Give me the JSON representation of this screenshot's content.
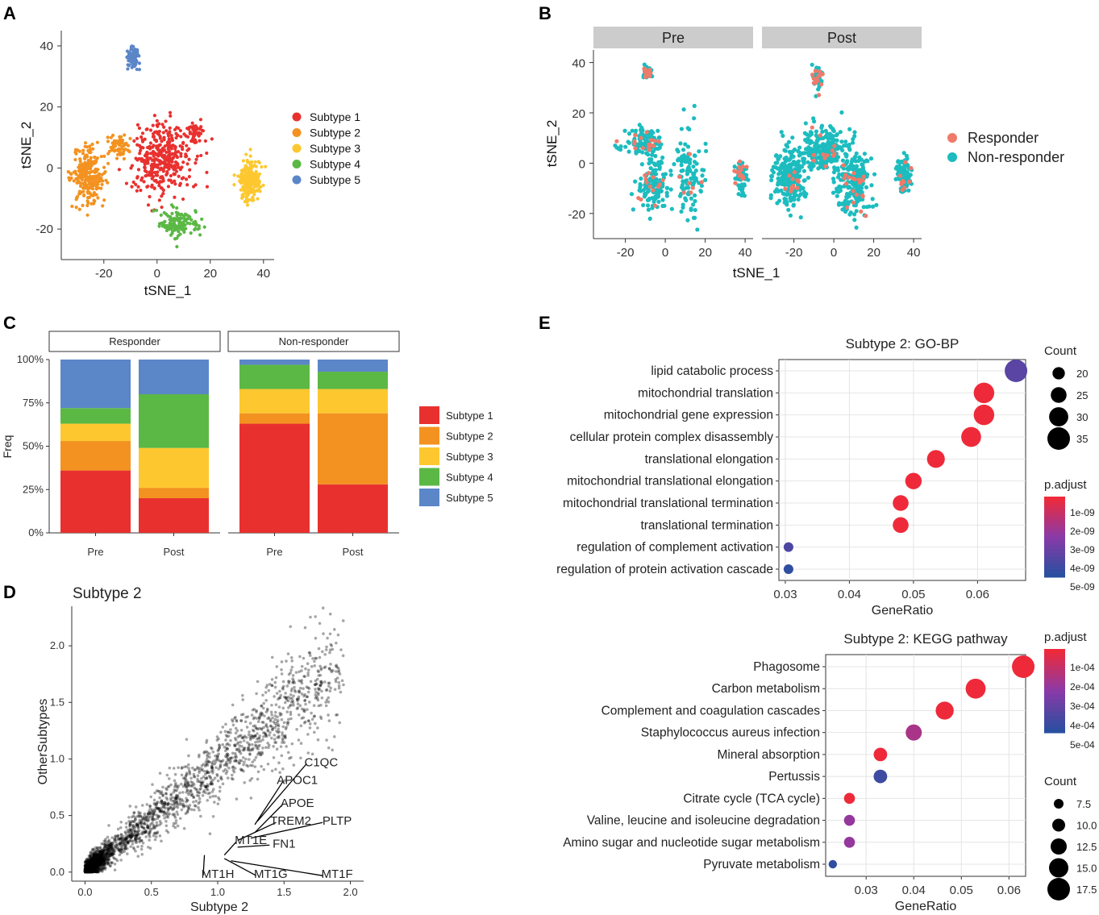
{
  "panel_labels": [
    "A",
    "B",
    "C",
    "D",
    "E"
  ],
  "colors": {
    "subtype1": "#e8312f",
    "subtype2": "#f39220",
    "subtype3": "#fdc82f",
    "subtype4": "#5bb845",
    "subtype5": "#5b86c8",
    "responder": "#f07a6a",
    "nonresponder": "#1cbcbf",
    "padj_high": "#ee2a3a",
    "padj_low": "#2a4fa0",
    "strip": "#cccccc"
  },
  "chart_data": [
    {
      "id": "A",
      "type": "scatter",
      "xlabel": "tSNE_1",
      "ylabel": "tSNE_2",
      "xlim": [
        -36,
        44
      ],
      "ylim": [
        -30,
        45
      ],
      "xticks": [
        -20,
        0,
        20,
        40
      ],
      "yticks": [
        -20,
        0,
        20,
        40
      ],
      "legend_position": "right",
      "series": [
        {
          "name": "Subtype 1",
          "clusters": [
            {
              "cx": 2,
              "cy": 3,
              "sx": 9,
              "sy": 10,
              "n": 360
            },
            {
              "cx": 15,
              "cy": 12,
              "sx": 3,
              "sy": 3,
              "n": 40
            }
          ]
        },
        {
          "name": "Subtype 2",
          "clusters": [
            {
              "cx": -26,
              "cy": -3,
              "sx": 5,
              "sy": 8,
              "n": 240
            },
            {
              "cx": -14,
              "cy": 7,
              "sx": 4,
              "sy": 3,
              "n": 60
            }
          ]
        },
        {
          "name": "Subtype 3",
          "clusters": [
            {
              "cx": 35,
              "cy": -4,
              "sx": 3.5,
              "sy": 5.5,
              "n": 230
            }
          ]
        },
        {
          "name": "Subtype 4",
          "clusters": [
            {
              "cx": 8,
              "cy": -18,
              "sx": 6,
              "sy": 4,
              "n": 140
            }
          ]
        },
        {
          "name": "Subtype 5",
          "clusters": [
            {
              "cx": -9,
              "cy": 36,
              "sx": 2.2,
              "sy": 3,
              "n": 90
            }
          ]
        }
      ]
    },
    {
      "id": "B",
      "type": "scatter",
      "xlabel": "tSNE_1",
      "ylabel": "tSNE_2",
      "xlim": [
        -36,
        44
      ],
      "ylim": [
        -30,
        45
      ],
      "xticks": [
        -20,
        0,
        20,
        40
      ],
      "yticks": [
        -20,
        0,
        20,
        40
      ],
      "facets": [
        "Pre",
        "Post"
      ],
      "legend_position": "right",
      "series": [
        {
          "name": "Responder",
          "pre_count": 60,
          "post_count": 70
        },
        {
          "name": "Non-responder",
          "pre_count": 400,
          "post_count": 850
        }
      ]
    },
    {
      "id": "C",
      "type": "bar",
      "stacked": true,
      "ylabel": "Freq",
      "yticks": [
        "0%",
        "25%",
        "50%",
        "75%",
        "100%"
      ],
      "facets": [
        "Responder",
        "Non-responder"
      ],
      "categories": [
        "Pre",
        "Post"
      ],
      "series": [
        {
          "name": "Subtype 1",
          "Responder": [
            36,
            20
          ],
          "Non-responder": [
            63,
            28
          ]
        },
        {
          "name": "Subtype 2",
          "Responder": [
            17,
            6
          ],
          "Non-responder": [
            6,
            41
          ]
        },
        {
          "name": "Subtype 3",
          "Responder": [
            10,
            23
          ],
          "Non-responder": [
            14,
            14
          ]
        },
        {
          "name": "Subtype 4",
          "Responder": [
            9,
            31
          ],
          "Non-responder": [
            14,
            10
          ]
        },
        {
          "name": "Subtype 5",
          "Responder": [
            28,
            20
          ],
          "Non-responder": [
            3,
            7
          ]
        }
      ]
    },
    {
      "id": "D",
      "type": "scatter",
      "title": "Subtype 2",
      "xlabel": "Subtype 2",
      "ylabel": "OtherSubtypes",
      "xlim": [
        -0.1,
        2.1
      ],
      "ylim": [
        -0.08,
        2.35
      ],
      "xticks": [
        "0.0",
        "0.5",
        "1.0",
        "1.5",
        "2.0"
      ],
      "yticks": [
        "0.0",
        "0.5",
        "1.0",
        "1.5",
        "2.0"
      ],
      "labelled_genes": [
        {
          "gene": "C1QC",
          "x": 1.3,
          "y": 0.45,
          "lx": 1.78,
          "ly": 0.98
        },
        {
          "gene": "APOC1",
          "x": 1.28,
          "y": 0.42,
          "lx": 1.6,
          "ly": 0.82
        },
        {
          "gene": "APOE",
          "x": 1.28,
          "y": 0.35,
          "lx": 1.6,
          "ly": 0.62
        },
        {
          "gene": "TREM2",
          "x": 1.15,
          "y": 0.28,
          "lx": 1.55,
          "ly": 0.46
        },
        {
          "gene": "PLTP",
          "x": 1.25,
          "y": 0.3,
          "lx": 1.9,
          "ly": 0.46
        },
        {
          "gene": "MT1E",
          "x": 1.05,
          "y": 0.15,
          "lx": 1.25,
          "ly": 0.29
        },
        {
          "gene": "FN1",
          "x": 1.15,
          "y": 0.22,
          "lx": 1.5,
          "ly": 0.26
        },
        {
          "gene": "MT1H",
          "x": 0.9,
          "y": 0.15,
          "lx": 1.0,
          "ly": -0.01
        },
        {
          "gene": "MT1G",
          "x": 1.05,
          "y": 0.12,
          "lx": 1.4,
          "ly": -0.01
        },
        {
          "gene": "MT1F",
          "x": 1.1,
          "y": 0.1,
          "lx": 1.9,
          "ly": -0.01
        }
      ]
    },
    {
      "id": "E1",
      "type": "scatter",
      "style": "dotplot",
      "title": "Subtype 2: GO-BP",
      "xlabel": "GeneRatio",
      "xlim": [
        0.029,
        0.0675
      ],
      "xticks": [
        0.03,
        0.04,
        0.05,
        0.06
      ],
      "xtick_labels": [
        "0.03",
        "0.04",
        "0.05",
        "0.06"
      ],
      "size_legend_title": "Count",
      "size_legend": [
        20,
        25,
        30,
        35
      ],
      "color_legend_title": "p.adjust",
      "color_legend": [
        "1e-09",
        "2e-09",
        "3e-09",
        "4e-09",
        "5e-09"
      ],
      "terms": [
        {
          "term": "lipid catabolic process",
          "gene_ratio": 0.066,
          "count": 35,
          "padj_frac": 0.75
        },
        {
          "term": "mitochondrial translation",
          "gene_ratio": 0.061,
          "count": 32,
          "padj_frac": 0.0
        },
        {
          "term": "mitochondrial gene expression",
          "gene_ratio": 0.061,
          "count": 32,
          "padj_frac": 0.0
        },
        {
          "term": "cellular protein complex disassembly",
          "gene_ratio": 0.059,
          "count": 31,
          "padj_frac": 0.0
        },
        {
          "term": "translational elongation",
          "gene_ratio": 0.0535,
          "count": 28,
          "padj_frac": 0.0
        },
        {
          "term": "mitochondrial translational elongation",
          "gene_ratio": 0.05,
          "count": 26,
          "padj_frac": 0.0
        },
        {
          "term": "mitochondrial translational termination",
          "gene_ratio": 0.048,
          "count": 25,
          "padj_frac": 0.0
        },
        {
          "term": "translational termination",
          "gene_ratio": 0.048,
          "count": 25,
          "padj_frac": 0.0
        },
        {
          "term": "regulation of complement activation",
          "gene_ratio": 0.0305,
          "count": 16,
          "padj_frac": 0.82
        },
        {
          "term": "regulation of protein activation cascade",
          "gene_ratio": 0.0305,
          "count": 16,
          "padj_frac": 0.97
        }
      ]
    },
    {
      "id": "E2",
      "type": "scatter",
      "style": "dotplot",
      "title": "Subtype 2: KEGG pathway",
      "xlabel": "GeneRatio",
      "xlim": [
        0.0215,
        0.0635
      ],
      "xticks": [
        0.03,
        0.04,
        0.05,
        0.06
      ],
      "xtick_labels": [
        "0.03",
        "0.04",
        "0.05",
        "0.06"
      ],
      "size_legend_title": "Count",
      "size_legend": [
        7.5,
        10.0,
        12.5,
        15.0,
        17.5
      ],
      "size_legend_labels": [
        "7.5",
        "10.0",
        "12.5",
        "15.0",
        "17.5"
      ],
      "color_legend_title": "p.adjust",
      "color_legend": [
        "1e-04",
        "2e-04",
        "3e-04",
        "4e-04",
        "5e-04"
      ],
      "terms": [
        {
          "term": "Phagosome",
          "gene_ratio": 0.063,
          "count": 17.5,
          "padj_frac": 0.0
        },
        {
          "term": "Carbon metabolism",
          "gene_ratio": 0.053,
          "count": 15.5,
          "padj_frac": 0.0
        },
        {
          "term": "Complement and coagulation cascades",
          "gene_ratio": 0.0465,
          "count": 14,
          "padj_frac": 0.0
        },
        {
          "term": "Staphylococcus aureus infection",
          "gene_ratio": 0.04,
          "count": 12.5,
          "padj_frac": 0.35
        },
        {
          "term": "Mineral absorption",
          "gene_ratio": 0.033,
          "count": 10.5,
          "padj_frac": 0.0
        },
        {
          "term": "Pertussis",
          "gene_ratio": 0.033,
          "count": 10.5,
          "padj_frac": 0.9
        },
        {
          "term": "Citrate cycle (TCA cycle)",
          "gene_ratio": 0.0265,
          "count": 8.5,
          "padj_frac": 0.0
        },
        {
          "term": "Valine, leucine and isoleucine degradation",
          "gene_ratio": 0.0265,
          "count": 8.5,
          "padj_frac": 0.45
        },
        {
          "term": "Amino sugar and nucleotide sugar metabolism",
          "gene_ratio": 0.0265,
          "count": 8.5,
          "padj_frac": 0.45
        },
        {
          "term": "Pyruvate metabolism",
          "gene_ratio": 0.023,
          "count": 6.5,
          "padj_frac": 0.97
        }
      ]
    }
  ]
}
